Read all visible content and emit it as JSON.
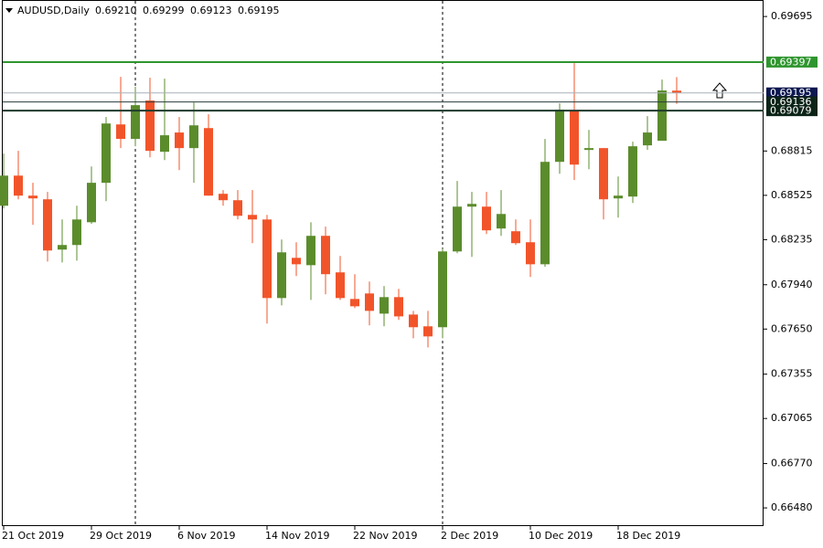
{
  "chart_data": {
    "type": "candlestick",
    "title": "AUDUSD,Daily",
    "ohlc_labels": [
      "0.69210",
      "0.69299",
      "0.69123",
      "0.69195"
    ],
    "categories": [
      "21 Oct 2019",
      null,
      null,
      null,
      null,
      null,
      "29 Oct 2019",
      null,
      null,
      null,
      null,
      null,
      "6 Nov 2019",
      null,
      null,
      null,
      null,
      null,
      "14 Nov 2019",
      null,
      null,
      null,
      null,
      null,
      "22 Nov 2019",
      null,
      null,
      null,
      null,
      null,
      "2 Dec 2019",
      null,
      null,
      null,
      null,
      null,
      "10 Dec 2019",
      null,
      null,
      null,
      null,
      null,
      "18 Dec 2019",
      null,
      null,
      null,
      null
    ],
    "open": [
      0.68457,
      0.68654,
      0.68523,
      0.68499,
      0.6817,
      0.682,
      0.68349,
      0.68607,
      0.68989,
      0.68894,
      0.69145,
      0.6881,
      0.68936,
      0.68834,
      0.68965,
      0.68535,
      0.68493,
      0.68397,
      0.68367,
      0.67853,
      0.68116,
      0.68068,
      0.6826,
      0.68021,
      0.67847,
      0.67883,
      0.67751,
      0.67859,
      0.67745,
      0.67668,
      0.67662,
      0.68158,
      0.68451,
      0.68451,
      0.68308,
      0.6829,
      0.68218,
      0.68074,
      0.68744,
      0.69079,
      0.68822,
      0.68834,
      0.68505,
      0.68517,
      0.68852,
      0.68882,
      0.6921
    ],
    "high": [
      0.68798,
      0.68816,
      0.68607,
      0.68547,
      0.68367,
      0.68457,
      0.68714,
      0.69037,
      0.693,
      0.69235,
      0.69294,
      0.69288,
      0.69037,
      0.69133,
      0.69055,
      0.68559,
      0.68559,
      0.68559,
      0.68397,
      0.68236,
      0.68218,
      0.68349,
      0.6832,
      0.68128,
      0.68009,
      0.67961,
      0.67931,
      0.67913,
      0.67769,
      0.67769,
      0.68176,
      0.68619,
      0.68547,
      0.68547,
      0.68559,
      0.68367,
      0.68367,
      0.68894,
      0.69127,
      0.6939,
      0.68953,
      0.68834,
      0.68648,
      0.68876,
      0.69043,
      0.69282,
      0.69299
    ],
    "low": [
      0.68439,
      0.68499,
      0.68332,
      0.68092,
      0.68086,
      0.68098,
      0.68338,
      0.68487,
      0.68834,
      0.68846,
      0.68774,
      0.68756,
      0.6869,
      0.68607,
      0.68523,
      0.68457,
      0.68367,
      0.68212,
      0.67686,
      0.67805,
      0.67997,
      0.67841,
      0.67877,
      0.67841,
      0.67787,
      0.67674,
      0.67668,
      0.6771,
      0.6759,
      0.6753,
      0.6759,
      0.68146,
      0.68122,
      0.68272,
      0.6826,
      0.682,
      0.67991,
      0.68057,
      0.68666,
      0.68625,
      0.68696,
      0.68367,
      0.68379,
      0.68475,
      0.68822,
      0.68882,
      0.69123
    ],
    "close": [
      0.68654,
      0.68523,
      0.68505,
      0.68164,
      0.682,
      0.68367,
      0.68607,
      0.68995,
      0.68894,
      0.69115,
      0.68816,
      0.68918,
      0.68834,
      0.68983,
      0.68523,
      0.68493,
      0.68391,
      0.68367,
      0.67853,
      0.68152,
      0.68074,
      0.6826,
      0.68009,
      0.67853,
      0.67799,
      0.67769,
      0.67859,
      0.67733,
      0.67662,
      0.67602,
      0.68158,
      0.68451,
      0.68469,
      0.68296,
      0.68403,
      0.68212,
      0.68074,
      0.68744,
      0.69085,
      0.68726,
      0.68834,
      0.68499,
      0.68523,
      0.68846,
      0.68936,
      0.69211,
      0.69195
    ],
    "up_color": "#5b8c2c",
    "down_color": "#f2542a",
    "ylim": [
      0.66361,
      0.69803
    ],
    "yticks": [
      0.69695,
      0.68815,
      0.68525,
      0.68235,
      {
        "value": 0.6794,
        "label": "0.67940"
      },
      {
        "value": 0.6765,
        "label": "0.67650"
      },
      0.67355,
      0.67065,
      {
        "value": 0.6677,
        "label": "0.66770"
      },
      {
        "value": 0.6648,
        "label": "0.66480"
      }
    ],
    "hlines": [
      {
        "value": 0.69397,
        "color": "#2f962f",
        "box_color": "#2f962f"
      },
      {
        "value": 0.69195,
        "color": "#a8b0b8",
        "box_color": "#0c1850"
      },
      {
        "value": 0.69136,
        "color": "#2a3a3a",
        "box_color": "#0c2418"
      },
      {
        "value": 0.69079,
        "color": "#1e3a2c",
        "box_color": "#0c2418"
      }
    ]
  }
}
